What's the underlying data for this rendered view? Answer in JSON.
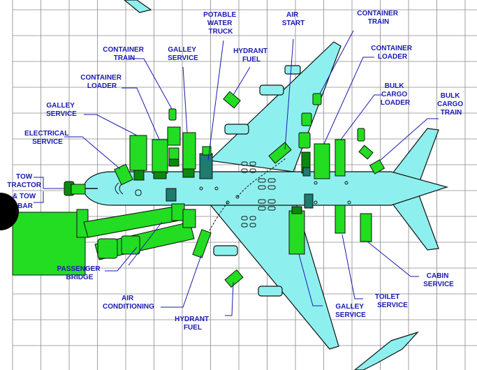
{
  "labels": {
    "potable_water_truck": [
      "POTABLE",
      "WATER",
      "TRUCK"
    ],
    "air_start": [
      "AIR",
      "START"
    ],
    "container_train_top": [
      "CONTAINER",
      "TRAIN"
    ],
    "container_train_left": [
      "CONTAINER",
      "TRAIN"
    ],
    "galley_service_top": [
      "GALLEY",
      "SERVICE"
    ],
    "hydrant_fuel_top": [
      "HYDRANT",
      "FUEL"
    ],
    "container_loader_right": [
      "CONTAINER",
      "LOADER"
    ],
    "container_loader_left": [
      "CONTAINER",
      "LOADER"
    ],
    "bulk_cargo_loader": [
      "BULK",
      "CARGO",
      "LOADER"
    ],
    "bulk_cargo_train": [
      "BULK",
      "CARGO",
      "TRAIN"
    ],
    "galley_service_left": [
      "GALLEY",
      "SERVICE"
    ],
    "electrical_service": [
      "ELECTRICAL",
      "SERVICE"
    ],
    "tow_tractor": [
      "TOW",
      "TRACTOR",
      "& TOW",
      "BAR"
    ],
    "passenger_bridge": [
      "PASSENGER",
      "BRIDGE"
    ],
    "air_conditioning": [
      "AIR",
      "CONDITIONING"
    ],
    "hydrant_fuel_bottom": [
      "HYDRANT",
      "FUEL"
    ],
    "galley_service_bottom": [
      "GALLEY",
      "SERVICE"
    ],
    "toilet_service": [
      "TOILET",
      "SERVICE"
    ],
    "cabin_service": [
      "CABIN",
      "SERVICE"
    ]
  },
  "colors": {
    "label": "#1a1ab0",
    "vehicle": "#22dd22",
    "vehicle_dark": "#0a8a0a",
    "aircraft": "#8ef0ee",
    "grid": "#8a8a8a"
  }
}
